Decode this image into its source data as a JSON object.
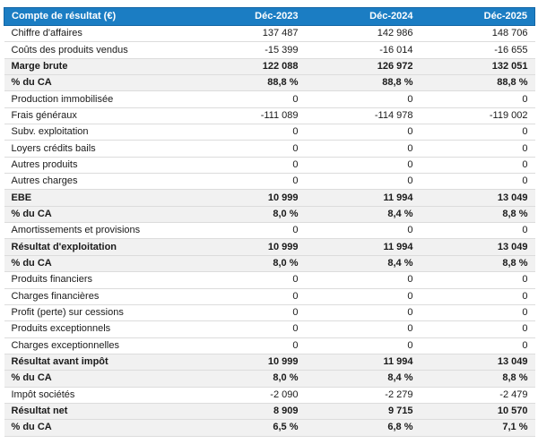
{
  "colors": {
    "header_bg": "#1b7dc3",
    "header_border": "#1366a5",
    "header_text": "#ffffff",
    "section_row_bg": "#f1f1f1",
    "row_divider": "#dcdcdc",
    "body_text": "#1a1a1a"
  },
  "table": {
    "header": {
      "label": "Compte de résultat (€)",
      "columns": [
        "Déc-2023",
        "Déc-2024",
        "Déc-2025"
      ]
    },
    "rows": [
      {
        "label": "Chiffre d'affaires",
        "values": [
          "137 487",
          "142 986",
          "148 706"
        ],
        "bold": false
      },
      {
        "label": "Coûts des produits vendus",
        "values": [
          "-15 399",
          "-16 014",
          "-16 655"
        ],
        "bold": false
      },
      {
        "label": "Marge brute",
        "values": [
          "122 088",
          "126 972",
          "132 051"
        ],
        "bold": true
      },
      {
        "label": "% du CA",
        "values": [
          "88,8 %",
          "88,8 %",
          "88,8 %"
        ],
        "bold": true
      },
      {
        "label": "Production immobilisée",
        "values": [
          "0",
          "0",
          "0"
        ],
        "bold": false
      },
      {
        "label": "Frais généraux",
        "values": [
          "-111 089",
          "-114 978",
          "-119 002"
        ],
        "bold": false
      },
      {
        "label": "Subv. exploitation",
        "values": [
          "0",
          "0",
          "0"
        ],
        "bold": false
      },
      {
        "label": "Loyers crédits bails",
        "values": [
          "0",
          "0",
          "0"
        ],
        "bold": false
      },
      {
        "label": "Autres produits",
        "values": [
          "0",
          "0",
          "0"
        ],
        "bold": false
      },
      {
        "label": "Autres charges",
        "values": [
          "0",
          "0",
          "0"
        ],
        "bold": false
      },
      {
        "label": "EBE",
        "values": [
          "10 999",
          "11 994",
          "13 049"
        ],
        "bold": true
      },
      {
        "label": "% du CA",
        "values": [
          "8,0 %",
          "8,4 %",
          "8,8 %"
        ],
        "bold": true
      },
      {
        "label": "Amortissements et provisions",
        "values": [
          "0",
          "0",
          "0"
        ],
        "bold": false
      },
      {
        "label": "Résultat d'exploitation",
        "values": [
          "10 999",
          "11 994",
          "13 049"
        ],
        "bold": true
      },
      {
        "label": "% du CA",
        "values": [
          "8,0 %",
          "8,4 %",
          "8,8 %"
        ],
        "bold": true
      },
      {
        "label": "Produits financiers",
        "values": [
          "0",
          "0",
          "0"
        ],
        "bold": false
      },
      {
        "label": "Charges financières",
        "values": [
          "0",
          "0",
          "0"
        ],
        "bold": false
      },
      {
        "label": "Profit (perte) sur cessions",
        "values": [
          "0",
          "0",
          "0"
        ],
        "bold": false
      },
      {
        "label": "Produits exceptionnels",
        "values": [
          "0",
          "0",
          "0"
        ],
        "bold": false
      },
      {
        "label": "Charges exceptionnelles",
        "values": [
          "0",
          "0",
          "0"
        ],
        "bold": false
      },
      {
        "label": "Résultat avant impôt",
        "values": [
          "10 999",
          "11 994",
          "13 049"
        ],
        "bold": true
      },
      {
        "label": "% du CA",
        "values": [
          "8,0 %",
          "8,4 %",
          "8,8 %"
        ],
        "bold": true
      },
      {
        "label": "Impôt sociétés",
        "values": [
          "-2 090",
          "-2 279",
          "-2 479"
        ],
        "bold": false
      },
      {
        "label": "Résultat net",
        "values": [
          "8 909",
          "9 715",
          "10 570"
        ],
        "bold": true
      },
      {
        "label": "% du CA",
        "values": [
          "6,5 %",
          "6,8 %",
          "7,1 %"
        ],
        "bold": true
      }
    ]
  },
  "chart_data": {
    "type": "table",
    "title": "Compte de résultat (€)",
    "columns": [
      "Déc-2023",
      "Déc-2024",
      "Déc-2025"
    ],
    "rows": [
      {
        "label": "Chiffre d'affaires",
        "values": [
          137487,
          142986,
          148706
        ]
      },
      {
        "label": "Coûts des produits vendus",
        "values": [
          -15399,
          -16014,
          -16655
        ]
      },
      {
        "label": "Marge brute",
        "values": [
          122088,
          126972,
          132051
        ]
      },
      {
        "label": "% du CA",
        "values": [
          88.8,
          88.8,
          88.8
        ],
        "unit": "%"
      },
      {
        "label": "Production immobilisée",
        "values": [
          0,
          0,
          0
        ]
      },
      {
        "label": "Frais généraux",
        "values": [
          -111089,
          -114978,
          -119002
        ]
      },
      {
        "label": "Subv. exploitation",
        "values": [
          0,
          0,
          0
        ]
      },
      {
        "label": "Loyers crédits bails",
        "values": [
          0,
          0,
          0
        ]
      },
      {
        "label": "Autres produits",
        "values": [
          0,
          0,
          0
        ]
      },
      {
        "label": "Autres charges",
        "values": [
          0,
          0,
          0
        ]
      },
      {
        "label": "EBE",
        "values": [
          10999,
          11994,
          13049
        ]
      },
      {
        "label": "% du CA",
        "values": [
          8.0,
          8.4,
          8.8
        ],
        "unit": "%"
      },
      {
        "label": "Amortissements et provisions",
        "values": [
          0,
          0,
          0
        ]
      },
      {
        "label": "Résultat d'exploitation",
        "values": [
          10999,
          11994,
          13049
        ]
      },
      {
        "label": "% du CA",
        "values": [
          8.0,
          8.4,
          8.8
        ],
        "unit": "%"
      },
      {
        "label": "Produits financiers",
        "values": [
          0,
          0,
          0
        ]
      },
      {
        "label": "Charges financières",
        "values": [
          0,
          0,
          0
        ]
      },
      {
        "label": "Profit (perte) sur cessions",
        "values": [
          0,
          0,
          0
        ]
      },
      {
        "label": "Produits exceptionnels",
        "values": [
          0,
          0,
          0
        ]
      },
      {
        "label": "Charges exceptionnelles",
        "values": [
          0,
          0,
          0
        ]
      },
      {
        "label": "Résultat avant impôt",
        "values": [
          10999,
          11994,
          13049
        ]
      },
      {
        "label": "% du CA",
        "values": [
          8.0,
          8.4,
          8.8
        ],
        "unit": "%"
      },
      {
        "label": "Impôt sociétés",
        "values": [
          -2090,
          -2279,
          -2479
        ]
      },
      {
        "label": "Résultat net",
        "values": [
          8909,
          9715,
          10570
        ]
      },
      {
        "label": "% du CA",
        "values": [
          6.5,
          6.8,
          7.1
        ],
        "unit": "%"
      }
    ]
  }
}
